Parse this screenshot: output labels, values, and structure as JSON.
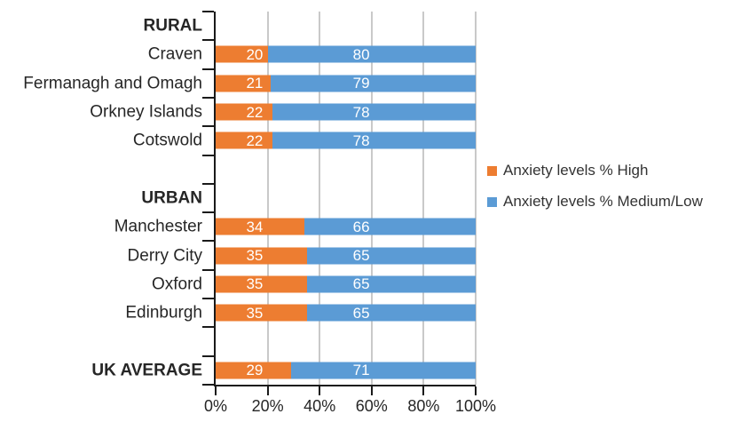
{
  "chart_data": {
    "type": "bar",
    "orientation": "horizontal",
    "stacked": true,
    "title": "",
    "categories": [
      "RURAL",
      "Craven",
      "Fermanagh and Omagh",
      "Orkney Islands",
      "Cotswold",
      "",
      "URBAN",
      "Manchester",
      "Derry City",
      "Oxford",
      "Edinburgh",
      "",
      "UK AVERAGE"
    ],
    "series": [
      {
        "name": "Anxiety levels % High",
        "color": "#ED7D31",
        "values": [
          null,
          20,
          21,
          22,
          22,
          null,
          null,
          34,
          35,
          35,
          35,
          null,
          29
        ]
      },
      {
        "name": "Anxiety levels % Medium/Low",
        "color": "#5B9BD5",
        "values": [
          null,
          80,
          79,
          78,
          78,
          null,
          null,
          66,
          65,
          65,
          65,
          null,
          71
        ]
      }
    ],
    "legend": [
      {
        "label": "Anxiety levels % High",
        "color": "#ED7D31"
      },
      {
        "label": "Anxiety levels % Medium/Low",
        "color": "#5B9BD5"
      }
    ],
    "legend_position": "right",
    "header_rows": [
      0,
      6
    ],
    "bold_rows": [
      0,
      6,
      12
    ],
    "x_axis": {
      "ticks": [
        "0%",
        "20%",
        "40%",
        "60%",
        "80%",
        "100%"
      ],
      "min": 0,
      "max": 100
    },
    "grid": true,
    "colors": {
      "grid": "#C9C9C9",
      "axis": "#1A1A1A",
      "text": "#262626",
      "value_label": "#FFFFFF"
    }
  }
}
